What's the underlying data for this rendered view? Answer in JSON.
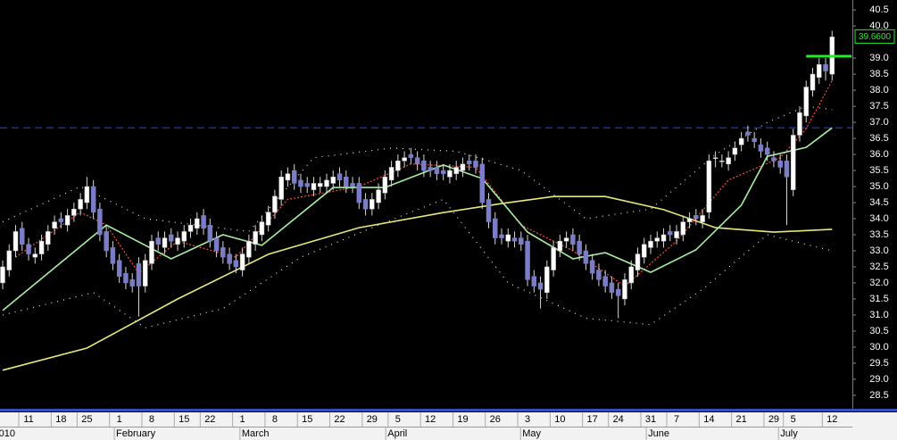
{
  "chart_data": {
    "type": "candlestick",
    "up_color": "#ffffff",
    "down_color": "#7b7dc7",
    "wick_color": "#d8d8d8",
    "ylim": [
      28.08,
      40.81
    ],
    "yticks": [
      28.5,
      {
        "value": 29,
        "label": "29.0"
      },
      29.5,
      {
        "value": 30,
        "label": "30.0"
      },
      30.5,
      {
        "value": 31,
        "label": "31.0"
      },
      31.5,
      {
        "value": 32,
        "label": "32.0"
      },
      32.5,
      {
        "value": 33,
        "label": "33.0"
      },
      33.5,
      {
        "value": 34,
        "label": "34.0"
      },
      34.5,
      {
        "value": 35,
        "label": "35.0"
      },
      35.5,
      {
        "value": 36,
        "label": "36.0"
      },
      36.5,
      {
        "value": 37,
        "label": "37.0"
      },
      37.5,
      {
        "value": 38,
        "label": "38.0"
      },
      38.5,
      {
        "value": 39,
        "label": "39.0"
      },
      {
        "value": 40,
        "label": "40.0"
      },
      40.5
    ],
    "xticks": [
      {
        "value": 4,
        "label": "11"
      },
      {
        "value": 9,
        "label": "18"
      },
      {
        "value": 13,
        "label": "25"
      },
      {
        "value": 18,
        "label": "1"
      },
      {
        "value": 23,
        "label": "8"
      },
      {
        "value": 28,
        "label": "15"
      },
      {
        "value": 32,
        "label": "22"
      },
      {
        "value": 37,
        "label": "1"
      },
      {
        "value": 42,
        "label": "8"
      },
      {
        "value": 47,
        "label": "15"
      },
      {
        "value": 52,
        "label": "22"
      },
      {
        "value": 57,
        "label": "29"
      },
      {
        "value": 61,
        "label": "5"
      },
      {
        "value": 66,
        "label": "12"
      },
      {
        "value": 71,
        "label": "19"
      },
      {
        "value": 76,
        "label": "26"
      },
      {
        "value": 81,
        "label": "3"
      },
      {
        "value": 86,
        "label": "10"
      },
      {
        "value": 91,
        "label": "17"
      },
      {
        "value": 95,
        "label": "24"
      },
      {
        "value": 100,
        "label": "31"
      },
      {
        "value": 104,
        "label": "7"
      },
      {
        "value": 109,
        "label": "14"
      },
      {
        "value": 114,
        "label": "21"
      },
      {
        "value": 119,
        "label": "29"
      },
      {
        "value": 122,
        "label": "5"
      },
      {
        "value": 128,
        "label": "12"
      }
    ],
    "months": [
      {
        "value": -0.6,
        "label": "010"
      },
      {
        "value": 17.5,
        "label": "February"
      },
      {
        "value": 36.9,
        "label": "March"
      },
      {
        "value": 59.4,
        "label": "April"
      },
      {
        "value": 80.2,
        "label": "May"
      },
      {
        "value": 99.6,
        "label": "June"
      },
      {
        "value": 120,
        "label": "July"
      }
    ],
    "open": [
      32.0,
      32.4,
      33.0,
      33.7,
      33.2,
      32.8,
      32.9,
      33.2,
      33.7,
      34.0,
      33.8,
      34.1,
      34.3,
      34.5,
      35.0,
      34.3,
      33.6,
      33.1,
      32.7,
      32.3,
      32.1,
      32.6,
      31.9,
      32.6,
      33.4,
      33.1,
      33.5,
      33.2,
      33.3,
      33.6,
      33.7,
      34.1,
      33.8,
      33.4,
      33.1,
      32.9,
      32.7,
      32.4,
      32.8,
      33.2,
      33.5,
      33.8,
      34.2,
      34.6,
      35.2,
      35.5,
      35.2,
      35.1,
      34.9,
      35.0,
      35.0,
      35.1,
      35.4,
      35.3,
      35.1,
      35.1,
      34.6,
      34.3,
      34.5,
      34.8,
      35.2,
      35.5,
      35.8,
      36.0,
      35.9,
      35.8,
      35.6,
      35.6,
      35.5,
      35.3,
      35.4,
      35.5,
      35.8,
      35.8,
      35.7,
      34.6,
      34.0,
      33.5,
      33.3,
      33.4,
      33.4,
      33.3,
      32.2,
      32.0,
      31.7,
      32.4,
      33.0,
      33.3,
      33.5,
      33.3,
      33.0,
      32.7,
      32.4,
      32.2,
      32.0,
      31.8,
      31.5,
      32.0,
      32.4,
      32.8,
      33.1,
      33.3,
      33.3,
      33.6,
      33.4,
      33.5,
      33.9,
      34.1,
      33.9,
      34.2,
      35.9,
      35.8,
      35.7,
      36.0,
      36.3,
      36.7,
      36.5,
      36.3,
      36.2,
      35.9,
      35.8,
      35.8,
      34.9,
      36.6,
      37.2,
      38.0,
      38.4,
      38.8,
      38.5
    ],
    "high": [
      32.7,
      33.2,
      33.8,
      33.9,
      33.4,
      33.1,
      33.5,
      33.8,
      34.1,
      34.2,
      34.3,
      34.5,
      34.8,
      35.3,
      35.2,
      34.5,
      33.8,
      33.3,
      32.9,
      32.5,
      32.3,
      32.8,
      32.9,
      33.5,
      33.6,
      33.6,
      33.7,
      33.6,
      33.8,
      34.0,
      34.2,
      34.3,
      34.0,
      33.6,
      33.3,
      33.1,
      32.9,
      33.1,
      33.5,
      33.8,
      34.1,
      34.4,
      34.9,
      35.5,
      35.6,
      35.7,
      35.4,
      35.3,
      35.3,
      35.3,
      35.4,
      35.5,
      35.6,
      35.5,
      35.3,
      35.3,
      34.8,
      34.8,
      35.1,
      35.5,
      35.8,
      36.0,
      36.1,
      36.2,
      36.1,
      36.0,
      35.8,
      35.8,
      35.7,
      35.7,
      35.8,
      35.9,
      36.0,
      36.0,
      35.9,
      34.8,
      34.2,
      33.7,
      33.7,
      33.6,
      33.6,
      33.5,
      32.4,
      32.2,
      32.7,
      33.3,
      33.5,
      33.6,
      33.7,
      33.5,
      33.2,
      32.9,
      32.6,
      32.4,
      32.2,
      32.0,
      32.3,
      32.7,
      33.1,
      33.4,
      33.5,
      33.6,
      33.7,
      33.8,
      33.8,
      34.1,
      34.2,
      34.3,
      34.3,
      36.0,
      36.1,
      36.0,
      36.1,
      36.4,
      36.7,
      36.9,
      36.7,
      36.5,
      36.4,
      36.1,
      36.0,
      36.0,
      36.8,
      37.5,
      38.3,
      38.7,
      39.0,
      39.0,
      39.85
    ],
    "low": [
      31.8,
      32.2,
      32.8,
      33.0,
      32.7,
      32.6,
      32.7,
      33.0,
      33.5,
      33.7,
      33.6,
      33.9,
      34.1,
      34.3,
      34.0,
      33.3,
      32.8,
      32.4,
      32.0,
      31.8,
      31.7,
      30.95,
      31.7,
      32.4,
      33.0,
      32.9,
      33.1,
      33.0,
      33.1,
      33.4,
      33.5,
      33.5,
      33.1,
      32.8,
      32.6,
      32.4,
      32.3,
      32.2,
      32.6,
      33.0,
      33.3,
      33.6,
      34.0,
      34.4,
      35.0,
      34.9,
      34.8,
      34.8,
      34.7,
      34.8,
      34.8,
      34.9,
      35.0,
      34.8,
      34.8,
      34.3,
      34.1,
      34.1,
      34.3,
      34.6,
      35.0,
      35.3,
      35.6,
      35.7,
      35.5,
      35.3,
      35.3,
      35.2,
      35.2,
      35.1,
      35.2,
      35.3,
      35.5,
      35.4,
      34.3,
      33.7,
      33.2,
      33.2,
      33.1,
      33.1,
      33.0,
      31.9,
      31.7,
      31.2,
      31.5,
      32.2,
      32.8,
      33.1,
      33.0,
      32.7,
      32.4,
      32.1,
      31.9,
      31.7,
      31.5,
      30.9,
      31.3,
      31.8,
      32.2,
      32.6,
      32.9,
      33.1,
      33.1,
      33.3,
      33.2,
      33.3,
      33.7,
      33.8,
      33.7,
      34.0,
      35.6,
      35.6,
      35.5,
      35.8,
      36.1,
      36.4,
      36.2,
      35.9,
      35.8,
      35.6,
      35.4,
      33.8,
      34.7,
      36.4,
      37.0,
      37.8,
      38.2,
      38.3,
      38.3
    ],
    "close": [
      32.5,
      33.0,
      33.6,
      33.2,
      32.9,
      32.9,
      33.3,
      33.6,
      33.9,
      33.9,
      34.1,
      34.3,
      34.6,
      35.0,
      34.2,
      33.5,
      33.0,
      32.6,
      32.2,
      32.0,
      31.9,
      31.9,
      32.7,
      33.3,
      33.2,
      33.4,
      33.3,
      33.4,
      33.6,
      33.8,
      34.0,
      33.7,
      33.3,
      33.0,
      32.8,
      32.6,
      32.5,
      32.9,
      33.3,
      33.6,
      33.9,
      34.2,
      34.7,
      35.3,
      35.4,
      35.1,
      35.0,
      35.0,
      35.1,
      35.1,
      35.2,
      35.3,
      35.2,
      35.0,
      35.0,
      34.5,
      34.3,
      34.6,
      34.9,
      35.3,
      35.6,
      35.8,
      35.9,
      35.9,
      35.7,
      35.5,
      35.5,
      35.4,
      35.4,
      35.5,
      35.6,
      35.7,
      35.7,
      35.6,
      34.5,
      33.9,
      33.4,
      33.4,
      33.5,
      33.3,
      33.2,
      32.1,
      31.9,
      31.8,
      32.5,
      33.1,
      33.3,
      33.4,
      33.2,
      32.9,
      32.6,
      32.3,
      32.1,
      31.9,
      31.7,
      31.6,
      32.1,
      32.5,
      32.9,
      33.2,
      33.3,
      33.4,
      33.5,
      33.5,
      33.6,
      33.9,
      34.0,
      34.0,
      34.1,
      35.8,
      35.9,
      35.8,
      35.9,
      36.2,
      36.5,
      36.6,
      36.4,
      36.1,
      36.0,
      35.8,
      35.6,
      35.3,
      36.6,
      37.3,
      38.1,
      38.5,
      38.8,
      38.6,
      39.66
    ],
    "lines": [
      {
        "color": "#e8e8e8",
        "style": "dotted",
        "x": [
          0,
          12,
          22,
          38,
          48,
          60,
          70,
          80,
          90,
          100,
          110,
          118,
          124,
          128
        ],
        "values": [
          33.9,
          35.0,
          34.0,
          33.6,
          35.9,
          36.2,
          36.1,
          35.5,
          34.0,
          34.3,
          36.0,
          37.0,
          37.5,
          37.4
        ]
      },
      {
        "color": "#e8e8e8",
        "style": "dotted",
        "x": [
          0,
          14,
          22,
          34,
          46,
          58,
          68,
          78,
          90,
          100,
          108,
          118,
          128
        ],
        "values": [
          31.0,
          31.7,
          30.6,
          31.2,
          32.8,
          33.8,
          34.6,
          32.0,
          30.9,
          30.7,
          31.8,
          33.5,
          33.0
        ]
      },
      {
        "color": "#e8e87a",
        "style": "solid",
        "x": [
          0,
          13,
          27,
          41,
          55,
          68,
          77,
          85,
          93,
          102,
          110,
          119,
          128
        ],
        "values": [
          29.28,
          29.97,
          31.5,
          32.89,
          33.72,
          34.19,
          34.47,
          34.69,
          34.69,
          34.28,
          33.72,
          33.58,
          33.67
        ]
      },
      {
        "color": "#ff4a3a",
        "style": "dashed",
        "x": [
          2,
          12,
          16,
          21,
          27,
          36,
          44,
          55,
          63,
          73,
          80,
          88,
          96,
          104,
          112,
          120,
          124,
          128
        ],
        "values": [
          32.8,
          34.2,
          33.8,
          32.3,
          33.3,
          32.8,
          34.6,
          35.0,
          35.7,
          35.6,
          33.8,
          33.0,
          31.9,
          33.3,
          35.2,
          35.9,
          36.8,
          38.3
        ]
      },
      {
        "color": "#a8f0a0",
        "style": "solid",
        "x": [
          0,
          16,
          26,
          34,
          40,
          51,
          59,
          68,
          74,
          81,
          88,
          93,
          100,
          107,
          114,
          118,
          124,
          128
        ],
        "values": [
          31.14,
          33.8,
          32.75,
          33.5,
          33.17,
          34.97,
          34.97,
          35.67,
          35.25,
          33.58,
          32.75,
          32.94,
          32.33,
          33.03,
          34.42,
          35.94,
          36.22,
          36.83
        ]
      }
    ],
    "hline": {
      "value": 36.83,
      "color": "#2040d0"
    },
    "trendline": {
      "value": 39.06,
      "x": [
        124,
        131
      ],
      "color": "#22ee22"
    },
    "price_label": {
      "value": 39.66,
      "label": "39.6600",
      "color": "#22ee22"
    }
  }
}
